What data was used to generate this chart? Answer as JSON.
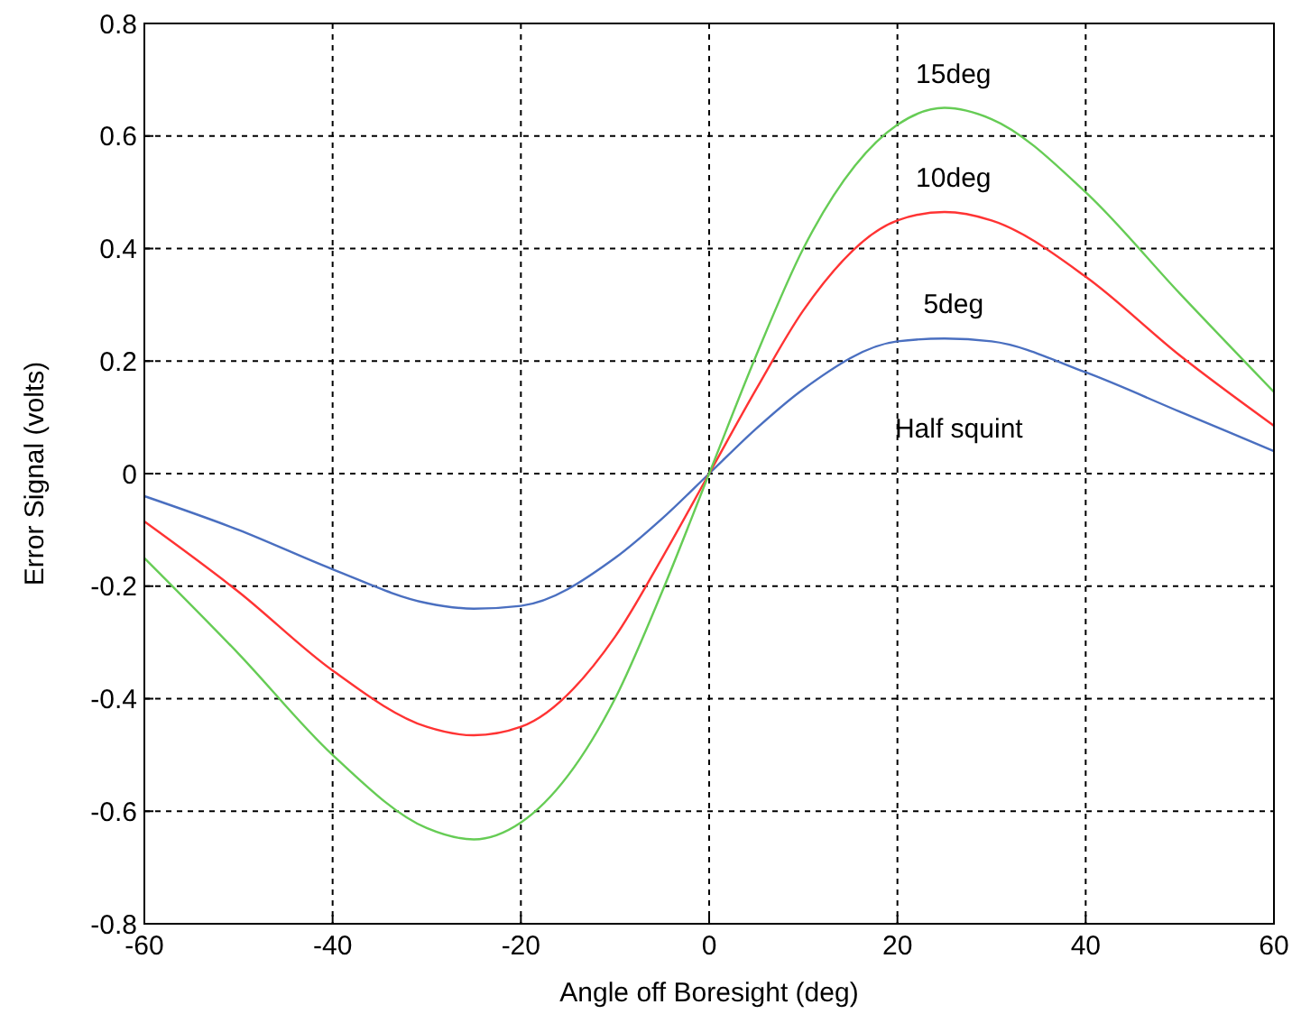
{
  "chart_data": {
    "type": "line",
    "xlabel": "Angle off Boresight (deg)",
    "ylabel": "Error Signal (volts)",
    "x": [
      -60,
      -50,
      -40,
      -30,
      -25,
      -20,
      -10,
      -5,
      0,
      5,
      10,
      20,
      25,
      30,
      40,
      50,
      60
    ],
    "series": [
      {
        "name": "5deg",
        "color": "#4a6fc0",
        "values": [
          -0.04,
          -0.1,
          -0.17,
          -0.23,
          -0.24,
          -0.235,
          -0.15,
          -0.08,
          0,
          0.08,
          0.15,
          0.235,
          0.24,
          0.235,
          0.18,
          0.11,
          0.04
        ]
      },
      {
        "name": "10deg",
        "color": "#ff3333",
        "values": [
          -0.085,
          -0.21,
          -0.35,
          -0.45,
          -0.465,
          -0.45,
          -0.29,
          -0.15,
          0,
          0.15,
          0.29,
          0.45,
          0.465,
          0.45,
          0.35,
          0.21,
          0.085
        ]
      },
      {
        "name": "15deg",
        "color": "#66cc55",
        "values": [
          -0.15,
          -0.32,
          -0.5,
          -0.63,
          -0.65,
          -0.62,
          -0.4,
          -0.21,
          0,
          0.21,
          0.4,
          0.62,
          0.65,
          0.63,
          0.5,
          0.32,
          0.145
        ]
      }
    ],
    "annotations": [
      "Half squint"
    ],
    "xlim": [
      -60,
      60
    ],
    "xticks": [
      -60,
      -40,
      -20,
      0,
      20,
      40,
      60
    ],
    "ylim": [
      -0.8,
      0.8
    ],
    "yticks": [
      -0.8,
      -0.6,
      -0.4,
      -0.2,
      0,
      0.2,
      0.4,
      0.6,
      0.8
    ],
    "grid": true,
    "line_style": "solid"
  }
}
